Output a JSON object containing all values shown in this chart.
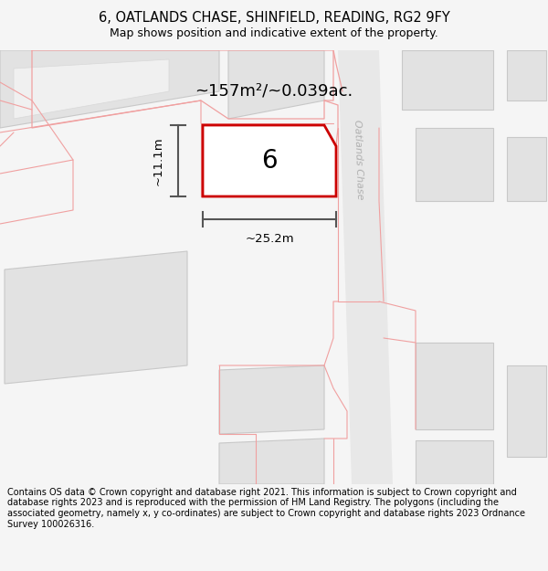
{
  "title": "6, OATLANDS CHASE, SHINFIELD, READING, RG2 9FY",
  "subtitle": "Map shows position and indicative extent of the property.",
  "footer": "Contains OS data © Crown copyright and database right 2021. This information is subject to Crown copyright and database rights 2023 and is reproduced with the permission of HM Land Registry. The polygons (including the associated geometry, namely x, y co-ordinates) are subject to Crown copyright and database rights 2023 Ordnance Survey 100026316.",
  "background_color": "#f5f5f5",
  "map_background": "#ffffff",
  "road_color": "#e8e8e8",
  "building_fill": "#e2e2e2",
  "building_edge": "#c8c8c8",
  "outline_color": "#f0a0a0",
  "highlight_edge": "#cc0000",
  "street_label": "Oatlands Chase",
  "area_label": "~157m²/~0.039ac.",
  "width_label": "~25.2m",
  "height_label": "~11.1m",
  "number_label": "6",
  "title_fontsize": 10.5,
  "subtitle_fontsize": 9,
  "footer_fontsize": 7.0
}
